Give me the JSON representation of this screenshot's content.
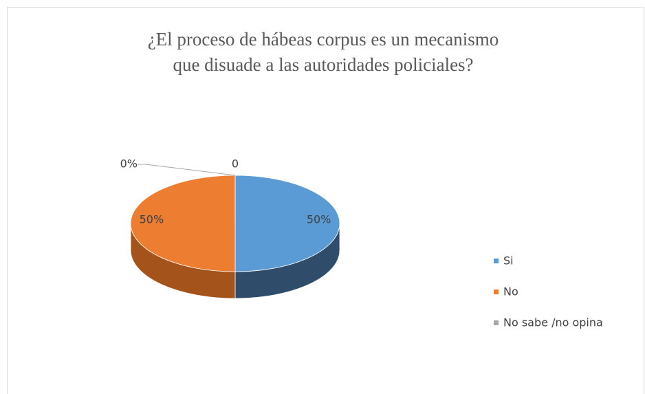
{
  "chart_data": {
    "type": "pie3d",
    "title": "¿El proceso de hábeas corpus es un mecanismo que disuade a las autoridades policiales?",
    "categories": [
      "Si",
      "No",
      "No sabe /no opina"
    ],
    "values": [
      50,
      50,
      0
    ],
    "value_labels": [
      "50%",
      "50%",
      "0%"
    ],
    "annotation": "0",
    "colors": [
      "#5b9bd5",
      "#ed7d31",
      "#a5a5a5"
    ],
    "side_colors": [
      "#2f4d6b",
      "#a4531b",
      "#6e6e6e"
    ],
    "legend": "right"
  }
}
